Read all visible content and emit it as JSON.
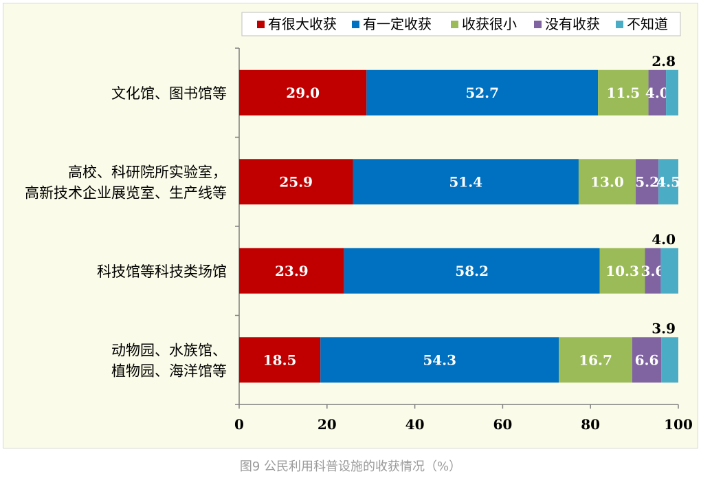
{
  "caption": "图9 公民利用科普设施的收获情况（%）",
  "chart_data": {
    "type": "bar",
    "orientation": "horizontal",
    "stacked": true,
    "categories": [
      [
        "文化馆、图书馆等"
      ],
      [
        "高校、科研院所实验室，",
        "高新技术企业展览室、生产线等"
      ],
      [
        "科技馆等科技类场馆"
      ],
      [
        "动物园、水族馆、",
        "植物园、海洋馆等"
      ]
    ],
    "series": [
      {
        "name": "有很大收获",
        "color": "#c00000",
        "values": [
          29.0,
          25.9,
          23.9,
          18.5
        ]
      },
      {
        "name": "有一定收获",
        "color": "#0070c0",
        "values": [
          52.7,
          51.4,
          58.2,
          54.3
        ]
      },
      {
        "name": "收获很小",
        "color": "#9bbb59",
        "values": [
          11.5,
          13.0,
          10.3,
          16.7
        ]
      },
      {
        "name": "没有收获",
        "color": "#8064a2",
        "values": [
          4.0,
          5.2,
          3.6,
          6.6
        ]
      },
      {
        "name": "不知道",
        "color": "#4bacc6",
        "values": [
          2.8,
          4.5,
          4.0,
          3.9
        ]
      }
    ],
    "xlim": [
      0,
      100
    ],
    "xticks": [
      0,
      20,
      40,
      60,
      80,
      100
    ],
    "xlabel": "",
    "ylabel": "",
    "legend": "top-right",
    "grid": false,
    "label_format": "0.0"
  }
}
